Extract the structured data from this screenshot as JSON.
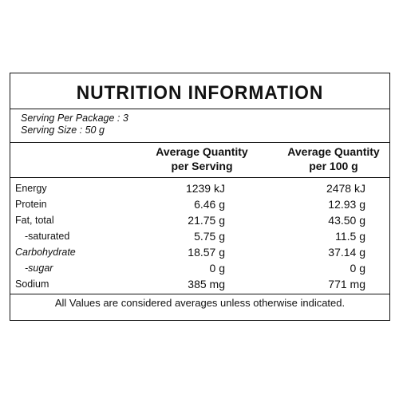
{
  "title": "NUTRITION INFORMATION",
  "serving": {
    "per_package": "Serving Per Package : 3",
    "size": "Serving Size : 50 g"
  },
  "headers": {
    "col1_line1": "Average Quantity",
    "col1_line2": "per Serving",
    "col2_line1": "Average Quantity",
    "col2_line2": "per 100 g"
  },
  "rows": [
    {
      "name": "Energy",
      "per_serving": "1239 kJ",
      "per_100g": "2478 kJ"
    },
    {
      "name": "Protein",
      "per_serving": "6.46 g",
      "per_100g": "12.93 g"
    },
    {
      "name": "Fat, total",
      "per_serving": "21.75 g",
      "per_100g": "43.50 g"
    },
    {
      "name": "-saturated",
      "per_serving": "5.75 g",
      "per_100g": "11.5 g"
    },
    {
      "name": "Carbohydrate",
      "per_serving": "18.57 g",
      "per_100g": "37.14 g"
    },
    {
      "name": "-sugar",
      "per_serving": "0 g",
      "per_100g": "0 g"
    },
    {
      "name": "Sodium",
      "per_serving": "385 mg",
      "per_100g": "771 mg"
    }
  ],
  "footnote": "All Values are considered averages unless otherwise indicated."
}
